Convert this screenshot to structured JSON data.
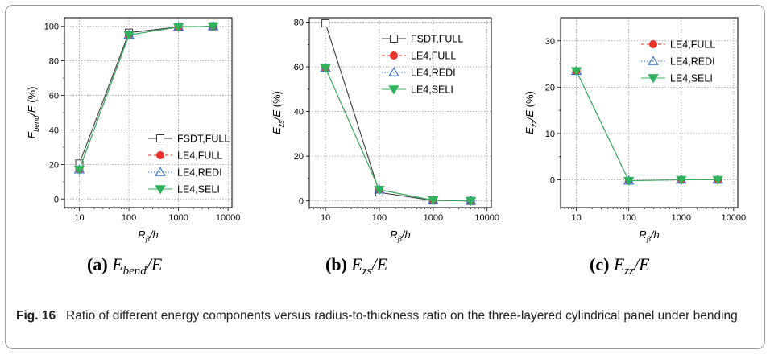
{
  "caption": {
    "label": "Fig. 16",
    "text": "Ratio of different energy components versus radius-to-thickness ratio on the three-layered cylindrical panel under bending"
  },
  "colors": {
    "fsdt_full": "#3a3a3a",
    "le4_full": "#e8312a",
    "le4_redi": "#2f6fd6",
    "le4_seli": "#2fb35a",
    "grid": "#9a9a9a"
  },
  "chart_data": [
    {
      "type": "line",
      "panel": "(a)",
      "sublabel_letter": "(a)",
      "sublabel_expr": "E_{bend}/E",
      "xscale": "log",
      "x": [
        10,
        100,
        1000,
        5000
      ],
      "xticks": [
        10,
        100,
        1000,
        10000
      ],
      "xlim": [
        5,
        12000
      ],
      "ylim": [
        -5,
        105
      ],
      "yticks": [
        0,
        20,
        40,
        60,
        80,
        100
      ],
      "xlabel": "R_β/h",
      "ylabel": "E_bend/E (%)",
      "legend_position": "lower-right",
      "grid": true,
      "series": [
        {
          "name": "FSDT,FULL",
          "marker": "open-square",
          "values": [
            20.5,
            96.3,
            99.7,
            100
          ]
        },
        {
          "name": "LE4,FULL",
          "marker": "filled-circle",
          "values": [
            17.0,
            95.0,
            99.6,
            100
          ]
        },
        {
          "name": "LE4,REDI",
          "marker": "open-triangle-up",
          "values": [
            17.0,
            95.0,
            99.6,
            100
          ]
        },
        {
          "name": "LE4,SELI",
          "marker": "filled-triangle-down",
          "values": [
            17.0,
            95.0,
            99.6,
            100
          ]
        }
      ]
    },
    {
      "type": "line",
      "panel": "(b)",
      "sublabel_letter": "(b)",
      "sublabel_expr": "E_{zs}/E",
      "xscale": "log",
      "x": [
        10,
        100,
        1000,
        5000
      ],
      "xticks": [
        10,
        100,
        1000,
        10000
      ],
      "xlim": [
        5,
        12000
      ],
      "ylim": [
        -3,
        82
      ],
      "yticks": [
        0,
        20,
        40,
        60,
        80
      ],
      "xlabel": "R_β/h",
      "ylabel": "E_zs/E (%)",
      "legend_position": "top-right",
      "grid": true,
      "series": [
        {
          "name": "FSDT,FULL",
          "marker": "open-square",
          "values": [
            79.5,
            3.8,
            0.2,
            0.0
          ]
        },
        {
          "name": "LE4,FULL",
          "marker": "filled-circle",
          "values": [
            59.5,
            5.0,
            0.3,
            0.0
          ]
        },
        {
          "name": "LE4,REDI",
          "marker": "open-triangle-up",
          "values": [
            59.5,
            5.0,
            0.3,
            0.0
          ]
        },
        {
          "name": "LE4,SELI",
          "marker": "filled-triangle-down",
          "values": [
            59.5,
            5.0,
            0.3,
            0.0
          ]
        }
      ]
    },
    {
      "type": "line",
      "panel": "(c)",
      "sublabel_letter": "(c)",
      "sublabel_expr": "E_{zz}/E",
      "xscale": "log",
      "x": [
        10,
        100,
        1000,
        5000
      ],
      "xticks": [
        10,
        100,
        1000,
        10000
      ],
      "xlim": [
        5,
        12000
      ],
      "ylim": [
        -6,
        35
      ],
      "yticks": [
        0,
        10,
        20,
        30
      ],
      "xlabel": "R_β/h",
      "ylabel": "E_zz/E (%)",
      "legend_position": "top-right",
      "grid": true,
      "series": [
        {
          "name": "LE4,FULL",
          "marker": "filled-circle",
          "values": [
            23.5,
            -0.2,
            0.0,
            0.0
          ]
        },
        {
          "name": "LE4,REDI",
          "marker": "open-triangle-up",
          "values": [
            23.5,
            -0.2,
            0.0,
            0.0
          ]
        },
        {
          "name": "LE4,SELI",
          "marker": "filled-triangle-down",
          "values": [
            23.5,
            -0.2,
            0.0,
            0.0
          ]
        }
      ]
    }
  ]
}
